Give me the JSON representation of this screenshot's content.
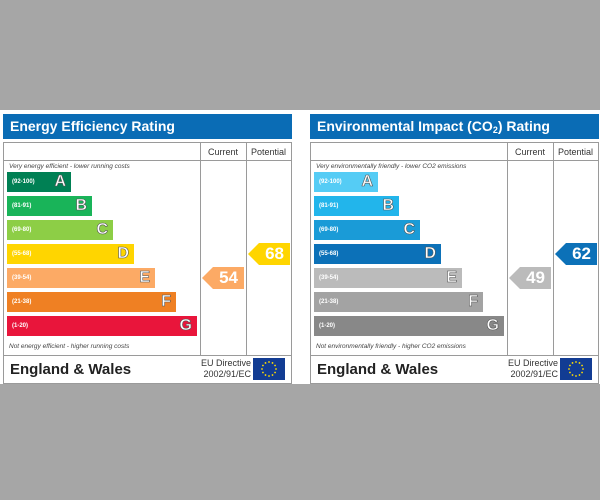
{
  "chart_data": [
    {
      "type": "table",
      "title": "Energy Efficiency Rating",
      "columns": [
        "",
        "Current",
        "Potential"
      ],
      "top_caption": "Very energy efficient - lower running costs",
      "bottom_caption": "Not energy efficient - higher running costs",
      "bands": [
        {
          "range": "(92-100)",
          "letter": "A",
          "color": "#008054"
        },
        {
          "range": "(81-91)",
          "letter": "B",
          "color": "#19b459"
        },
        {
          "range": "(69-80)",
          "letter": "C",
          "color": "#8dce46"
        },
        {
          "range": "(55-68)",
          "letter": "D",
          "color": "#ffd500"
        },
        {
          "range": "(39-54)",
          "letter": "E",
          "color": "#fcaa65"
        },
        {
          "range": "(21-38)",
          "letter": "F",
          "color": "#ef8023"
        },
        {
          "range": "(1-20)",
          "letter": "G",
          "color": "#e9153b"
        }
      ],
      "current": {
        "value": 54,
        "band": "E",
        "color": "#fcaa65"
      },
      "potential": {
        "value": 68,
        "band": "D",
        "color": "#ffd500"
      },
      "footer": {
        "region": "England & Wales",
        "directive_line1": "EU Directive",
        "directive_line2": "2002/91/EC"
      }
    },
    {
      "type": "table",
      "title": "Environmental Impact (CO2) Rating",
      "columns": [
        "",
        "Current",
        "Potential"
      ],
      "top_caption": "Very environmentally friendly - lower CO2 emissions",
      "bottom_caption": "Not environmentally friendly - higher CO2 emissions",
      "bands": [
        {
          "range": "(92-100)",
          "letter": "A",
          "color": "#55ccf5"
        },
        {
          "range": "(81-91)",
          "letter": "B",
          "color": "#22b5eb"
        },
        {
          "range": "(69-80)",
          "letter": "C",
          "color": "#1a9bd7"
        },
        {
          "range": "(55-68)",
          "letter": "D",
          "color": "#0c71b8"
        },
        {
          "range": "(39-54)",
          "letter": "E",
          "color": "#bbbbbb"
        },
        {
          "range": "(21-38)",
          "letter": "F",
          "color": "#a3a3a3"
        },
        {
          "range": "(1-20)",
          "letter": "G",
          "color": "#888888"
        }
      ],
      "current": {
        "value": 49,
        "band": "E",
        "color": "#bbbbbb"
      },
      "potential": {
        "value": 62,
        "band": "D",
        "color": "#0c71b8"
      },
      "footer": {
        "region": "England & Wales",
        "directive_line1": "EU Directive",
        "directive_line2": "2002/91/EC"
      }
    }
  ],
  "ui": {
    "title_bar_color": "#0a6cb5",
    "energy_title": "Energy Efficiency Rating",
    "env_title_prefix": "Environmental Impact (CO",
    "env_title_sub": "2",
    "env_title_suffix": ") Rating"
  }
}
